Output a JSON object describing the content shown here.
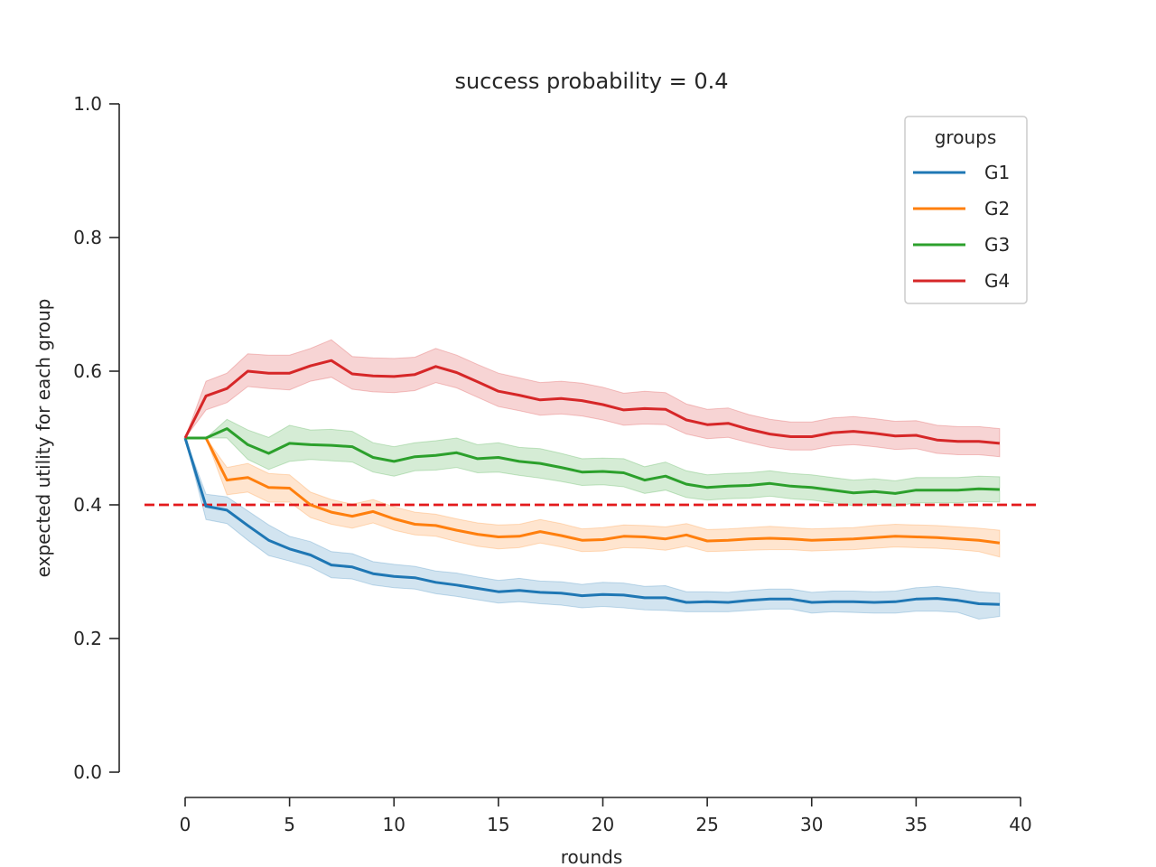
{
  "chart_data": {
    "type": "line",
    "title": "success probability = 0.4",
    "xlabel": "rounds",
    "ylabel": "expected utility for each group",
    "xlim": [
      -3,
      40
    ],
    "ylim": [
      0.0,
      1.0
    ],
    "x_ticks": [
      0,
      5,
      10,
      15,
      20,
      25,
      30,
      35,
      40
    ],
    "x_tick_labels": [
      "0",
      "5",
      "10",
      "15",
      "20",
      "25",
      "30",
      "35",
      "40"
    ],
    "y_ticks": [
      0.0,
      0.2,
      0.4,
      0.6,
      0.8,
      1.0
    ],
    "y_tick_labels": [
      "0.0",
      "0.2",
      "0.4",
      "0.6",
      "0.8",
      "1.0"
    ],
    "grid": false,
    "legend": {
      "title": "groups",
      "placement": "top-right"
    },
    "reference_line": {
      "y": 0.4,
      "style": "dashed",
      "color": "#e31a1c"
    },
    "x": [
      0,
      1,
      2,
      3,
      4,
      5,
      6,
      7,
      8,
      9,
      10,
      11,
      12,
      13,
      14,
      15,
      16,
      17,
      18,
      19,
      20,
      21,
      22,
      23,
      24,
      25,
      26,
      27,
      28,
      29,
      30,
      31,
      32,
      33,
      34,
      35,
      36,
      37,
      38,
      39
    ],
    "series": [
      {
        "name": "G1",
        "color": "#1f77b4",
        "values": [
          0.5,
          0.398,
          0.392,
          0.369,
          0.347,
          0.334,
          0.325,
          0.31,
          0.307,
          0.297,
          0.293,
          0.291,
          0.284,
          0.28,
          0.275,
          0.27,
          0.272,
          0.269,
          0.268,
          0.264,
          0.266,
          0.265,
          0.261,
          0.261,
          0.254,
          0.255,
          0.254,
          0.257,
          0.259,
          0.259,
          0.254,
          0.255,
          0.255,
          0.254,
          0.255,
          0.259,
          0.26,
          0.257,
          0.252,
          0.251
        ],
        "lower": [
          0.5,
          0.378,
          0.372,
          0.347,
          0.324,
          0.316,
          0.307,
          0.291,
          0.289,
          0.28,
          0.276,
          0.274,
          0.267,
          0.263,
          0.258,
          0.253,
          0.255,
          0.252,
          0.25,
          0.246,
          0.248,
          0.246,
          0.243,
          0.242,
          0.24,
          0.24,
          0.24,
          0.242,
          0.244,
          0.244,
          0.238,
          0.24,
          0.239,
          0.238,
          0.238,
          0.241,
          0.241,
          0.239,
          0.229,
          0.233
        ],
        "upper": [
          0.5,
          0.416,
          0.412,
          0.391,
          0.37,
          0.353,
          0.345,
          0.33,
          0.327,
          0.315,
          0.311,
          0.308,
          0.301,
          0.298,
          0.292,
          0.287,
          0.29,
          0.286,
          0.285,
          0.281,
          0.284,
          0.283,
          0.278,
          0.279,
          0.27,
          0.27,
          0.269,
          0.272,
          0.274,
          0.274,
          0.269,
          0.271,
          0.271,
          0.27,
          0.271,
          0.276,
          0.278,
          0.275,
          0.27,
          0.268
        ]
      },
      {
        "name": "G2",
        "color": "#ff7f0e",
        "values": [
          0.5,
          0.5,
          0.437,
          0.441,
          0.426,
          0.425,
          0.4,
          0.389,
          0.383,
          0.39,
          0.379,
          0.371,
          0.369,
          0.362,
          0.356,
          0.352,
          0.353,
          0.36,
          0.354,
          0.347,
          0.348,
          0.353,
          0.352,
          0.349,
          0.355,
          0.346,
          0.347,
          0.349,
          0.35,
          0.349,
          0.347,
          0.348,
          0.349,
          0.351,
          0.353,
          0.352,
          0.351,
          0.349,
          0.347,
          0.343
        ],
        "lower": [
          0.5,
          0.5,
          0.415,
          0.419,
          0.404,
          0.404,
          0.381,
          0.371,
          0.365,
          0.373,
          0.362,
          0.355,
          0.353,
          0.345,
          0.338,
          0.334,
          0.336,
          0.343,
          0.337,
          0.33,
          0.331,
          0.336,
          0.335,
          0.332,
          0.338,
          0.33,
          0.331,
          0.332,
          0.333,
          0.333,
          0.331,
          0.332,
          0.333,
          0.335,
          0.337,
          0.336,
          0.335,
          0.333,
          0.33,
          0.322
        ],
        "upper": [
          0.5,
          0.5,
          0.456,
          0.462,
          0.447,
          0.445,
          0.419,
          0.408,
          0.401,
          0.408,
          0.397,
          0.389,
          0.386,
          0.379,
          0.373,
          0.37,
          0.371,
          0.378,
          0.372,
          0.364,
          0.366,
          0.37,
          0.369,
          0.367,
          0.372,
          0.363,
          0.364,
          0.366,
          0.368,
          0.366,
          0.364,
          0.365,
          0.366,
          0.369,
          0.371,
          0.37,
          0.369,
          0.367,
          0.365,
          0.362
        ]
      },
      {
        "name": "G3",
        "color": "#2ca02c",
        "values": [
          0.5,
          0.5,
          0.514,
          0.49,
          0.477,
          0.492,
          0.49,
          0.489,
          0.487,
          0.471,
          0.465,
          0.472,
          0.474,
          0.478,
          0.469,
          0.471,
          0.465,
          0.462,
          0.456,
          0.449,
          0.45,
          0.448,
          0.437,
          0.443,
          0.431,
          0.426,
          0.428,
          0.429,
          0.432,
          0.428,
          0.426,
          0.422,
          0.418,
          0.42,
          0.417,
          0.422,
          0.422,
          0.422,
          0.424,
          0.423
        ],
        "lower": [
          0.5,
          0.5,
          0.5,
          0.468,
          0.453,
          0.465,
          0.468,
          0.466,
          0.464,
          0.449,
          0.443,
          0.451,
          0.452,
          0.456,
          0.448,
          0.449,
          0.444,
          0.44,
          0.435,
          0.429,
          0.43,
          0.427,
          0.417,
          0.422,
          0.411,
          0.407,
          0.409,
          0.41,
          0.413,
          0.409,
          0.407,
          0.403,
          0.399,
          0.401,
          0.398,
          0.403,
          0.403,
          0.403,
          0.405,
          0.404
        ],
        "upper": [
          0.5,
          0.5,
          0.528,
          0.512,
          0.501,
          0.519,
          0.512,
          0.513,
          0.51,
          0.493,
          0.487,
          0.493,
          0.496,
          0.5,
          0.49,
          0.493,
          0.486,
          0.484,
          0.477,
          0.469,
          0.47,
          0.469,
          0.457,
          0.464,
          0.451,
          0.445,
          0.447,
          0.448,
          0.451,
          0.447,
          0.445,
          0.441,
          0.437,
          0.439,
          0.436,
          0.441,
          0.441,
          0.441,
          0.443,
          0.442
        ]
      },
      {
        "name": "G4",
        "color": "#d62728",
        "values": [
          0.5,
          0.563,
          0.574,
          0.6,
          0.597,
          0.597,
          0.608,
          0.616,
          0.596,
          0.593,
          0.592,
          0.595,
          0.607,
          0.598,
          0.584,
          0.57,
          0.564,
          0.557,
          0.559,
          0.556,
          0.55,
          0.542,
          0.544,
          0.543,
          0.527,
          0.52,
          0.522,
          0.513,
          0.506,
          0.502,
          0.502,
          0.508,
          0.51,
          0.507,
          0.503,
          0.504,
          0.497,
          0.495,
          0.495,
          0.492
        ],
        "lower": [
          0.5,
          0.542,
          0.553,
          0.577,
          0.574,
          0.572,
          0.585,
          0.591,
          0.573,
          0.569,
          0.568,
          0.571,
          0.583,
          0.575,
          0.561,
          0.547,
          0.541,
          0.534,
          0.536,
          0.533,
          0.527,
          0.519,
          0.521,
          0.52,
          0.506,
          0.499,
          0.501,
          0.493,
          0.486,
          0.482,
          0.482,
          0.488,
          0.49,
          0.487,
          0.483,
          0.484,
          0.477,
          0.475,
          0.475,
          0.472
        ],
        "upper": [
          0.5,
          0.585,
          0.597,
          0.626,
          0.624,
          0.624,
          0.634,
          0.647,
          0.622,
          0.62,
          0.619,
          0.621,
          0.634,
          0.624,
          0.61,
          0.597,
          0.59,
          0.583,
          0.585,
          0.582,
          0.576,
          0.567,
          0.57,
          0.568,
          0.551,
          0.543,
          0.545,
          0.535,
          0.528,
          0.524,
          0.524,
          0.53,
          0.532,
          0.529,
          0.525,
          0.526,
          0.519,
          0.517,
          0.517,
          0.514
        ]
      }
    ]
  }
}
